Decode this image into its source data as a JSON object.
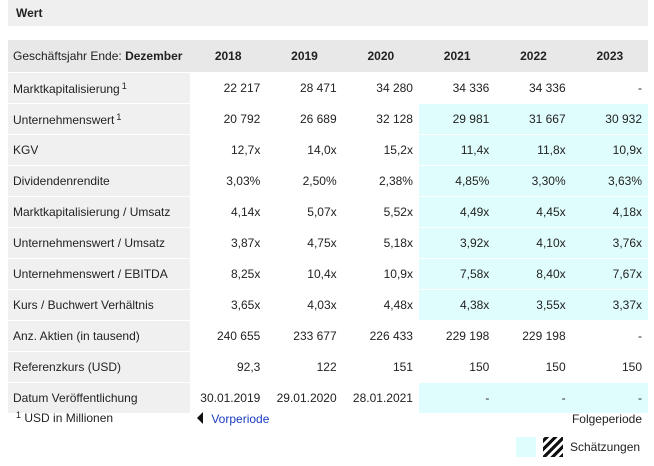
{
  "header": {
    "title": "Wert"
  },
  "table": {
    "corner": {
      "text": "Geschäftsjahr Ende:",
      "bold": "Dezember"
    },
    "columns": [
      "2018",
      "2019",
      "2020",
      "2021",
      "2022",
      "2023"
    ],
    "rows": [
      {
        "label": "Marktkapitalisierung",
        "note": "1",
        "cells": [
          "22 217",
          "28 471",
          "34 280",
          "34 336",
          "34 336",
          "-"
        ]
      },
      {
        "label": "Unternehmenswert",
        "note": "1",
        "cells": [
          "20 792",
          "26 689",
          "32 128",
          "29 981",
          "31 667",
          "30 932"
        ]
      },
      {
        "label": "KGV",
        "cells": [
          "12,7x",
          "14,0x",
          "15,2x",
          "11,4x",
          "11,8x",
          "10,9x"
        ]
      },
      {
        "label": "Dividendenrendite",
        "cells": [
          "3,03%",
          "2,50%",
          "2,38%",
          "4,85%",
          "3,30%",
          "3,63%"
        ]
      },
      {
        "label": "Marktkapitalisierung / Umsatz",
        "cells": [
          "4,14x",
          "5,07x",
          "5,52x",
          "4,49x",
          "4,45x",
          "4,18x"
        ]
      },
      {
        "label": "Unternehmenswert / Umsatz",
        "cells": [
          "3,87x",
          "4,75x",
          "5,18x",
          "3,92x",
          "4,10x",
          "3,76x"
        ]
      },
      {
        "label": "Unternehmenswert / EBITDA",
        "cells": [
          "8,25x",
          "10,4x",
          "10,9x",
          "7,58x",
          "8,40x",
          "7,67x"
        ]
      },
      {
        "label": "Kurs / Buchwert Verhältnis",
        "cells": [
          "3,65x",
          "4,03x",
          "4,48x",
          "4,38x",
          "3,55x",
          "3,37x"
        ]
      },
      {
        "label": "Anz. Aktien (in tausend)",
        "cells": [
          "240 655",
          "233 677",
          "226 433",
          "229 198",
          "229 198",
          "-"
        ]
      },
      {
        "label": "Referenzkurs (USD)",
        "cells": [
          "92,3",
          "122",
          "151",
          "150",
          "150",
          "150"
        ]
      },
      {
        "label": "Datum Veröffentlichung",
        "cells": [
          "30.01.2019",
          "29.01.2020",
          "28.01.2021",
          "-",
          "-",
          "-"
        ]
      }
    ]
  },
  "footer": {
    "note_mark": "1",
    "note": "USD in Millionen",
    "prev": "Vorperiode",
    "next": "Folgeperiode",
    "legend": "Schätzungen"
  }
}
